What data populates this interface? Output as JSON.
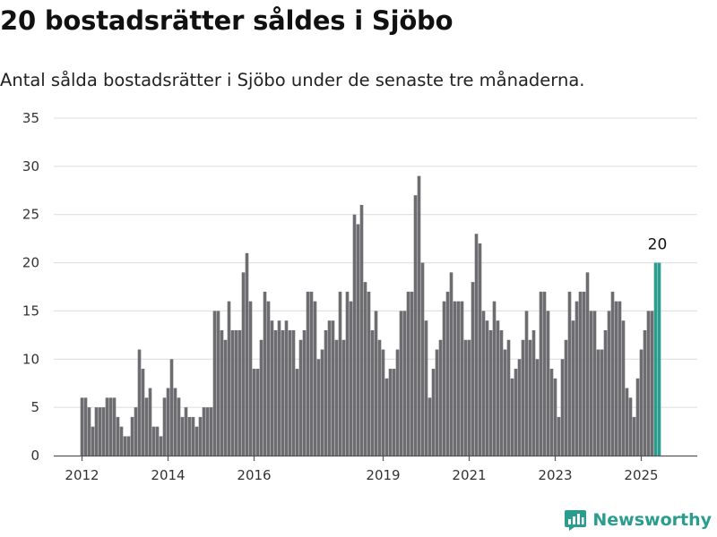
{
  "header": {
    "title": "20 bostadsrätter såldes i Sjöbo",
    "subtitle": "Antal sålda bostadsrätter i Sjöbo under de senaste tre månaderna."
  },
  "brand": {
    "name": "Newsworthy",
    "icon": "bar-chart-logo-icon",
    "color": "#2a9d8f"
  },
  "chart_data": {
    "type": "bar",
    "title": "20 bostadsrätter såldes i Sjöbo",
    "subtitle": "Antal sålda bostadsrätter i Sjöbo under de senaste tre månaderna.",
    "x_start": "2012-01",
    "x_interval": "month",
    "ylim": [
      0,
      35
    ],
    "yticks": [
      0,
      5,
      10,
      15,
      20,
      25,
      30,
      35
    ],
    "xticks": [
      {
        "label": "2012",
        "date": "2012-01"
      },
      {
        "label": "2014",
        "date": "2014-01"
      },
      {
        "label": "2016",
        "date": "2016-01"
      },
      {
        "label": "2019",
        "date": "2019-01"
      },
      {
        "label": "2021",
        "date": "2021-01"
      },
      {
        "label": "2023",
        "date": "2023-01"
      },
      {
        "label": "2025",
        "date": "2025-01"
      }
    ],
    "grid": true,
    "bar_color": "#6d6c71",
    "highlight_color": "#2a9d8f",
    "highlight_last": 2,
    "annotation": "20",
    "values": [
      6,
      6,
      5,
      3,
      5,
      5,
      5,
      6,
      6,
      6,
      4,
      3,
      2,
      2,
      4,
      5,
      11,
      9,
      6,
      7,
      3,
      3,
      2,
      6,
      7,
      10,
      7,
      6,
      4,
      5,
      4,
      4,
      3,
      4,
      5,
      5,
      5,
      15,
      15,
      13,
      12,
      16,
      13,
      13,
      13,
      19,
      21,
      16,
      9,
      9,
      12,
      17,
      16,
      14,
      13,
      14,
      13,
      14,
      13,
      13,
      9,
      12,
      13,
      17,
      17,
      16,
      10,
      11,
      13,
      14,
      14,
      12,
      17,
      12,
      17,
      16,
      25,
      24,
      26,
      18,
      17,
      13,
      15,
      12,
      11,
      8,
      9,
      9,
      11,
      15,
      15,
      17,
      17,
      27,
      29,
      20,
      14,
      6,
      9,
      11,
      12,
      16,
      17,
      19,
      16,
      16,
      16,
      12,
      12,
      18,
      23,
      22,
      15,
      14,
      13,
      16,
      14,
      13,
      11,
      12,
      8,
      9,
      10,
      12,
      15,
      12,
      13,
      10,
      17,
      17,
      15,
      9,
      8,
      4,
      10,
      12,
      17,
      14,
      16,
      17,
      17,
      19,
      15,
      15,
      11,
      11,
      13,
      15,
      17,
      16,
      16,
      14,
      7,
      6,
      4,
      8,
      11,
      13,
      15,
      15,
      20,
      20
    ]
  }
}
